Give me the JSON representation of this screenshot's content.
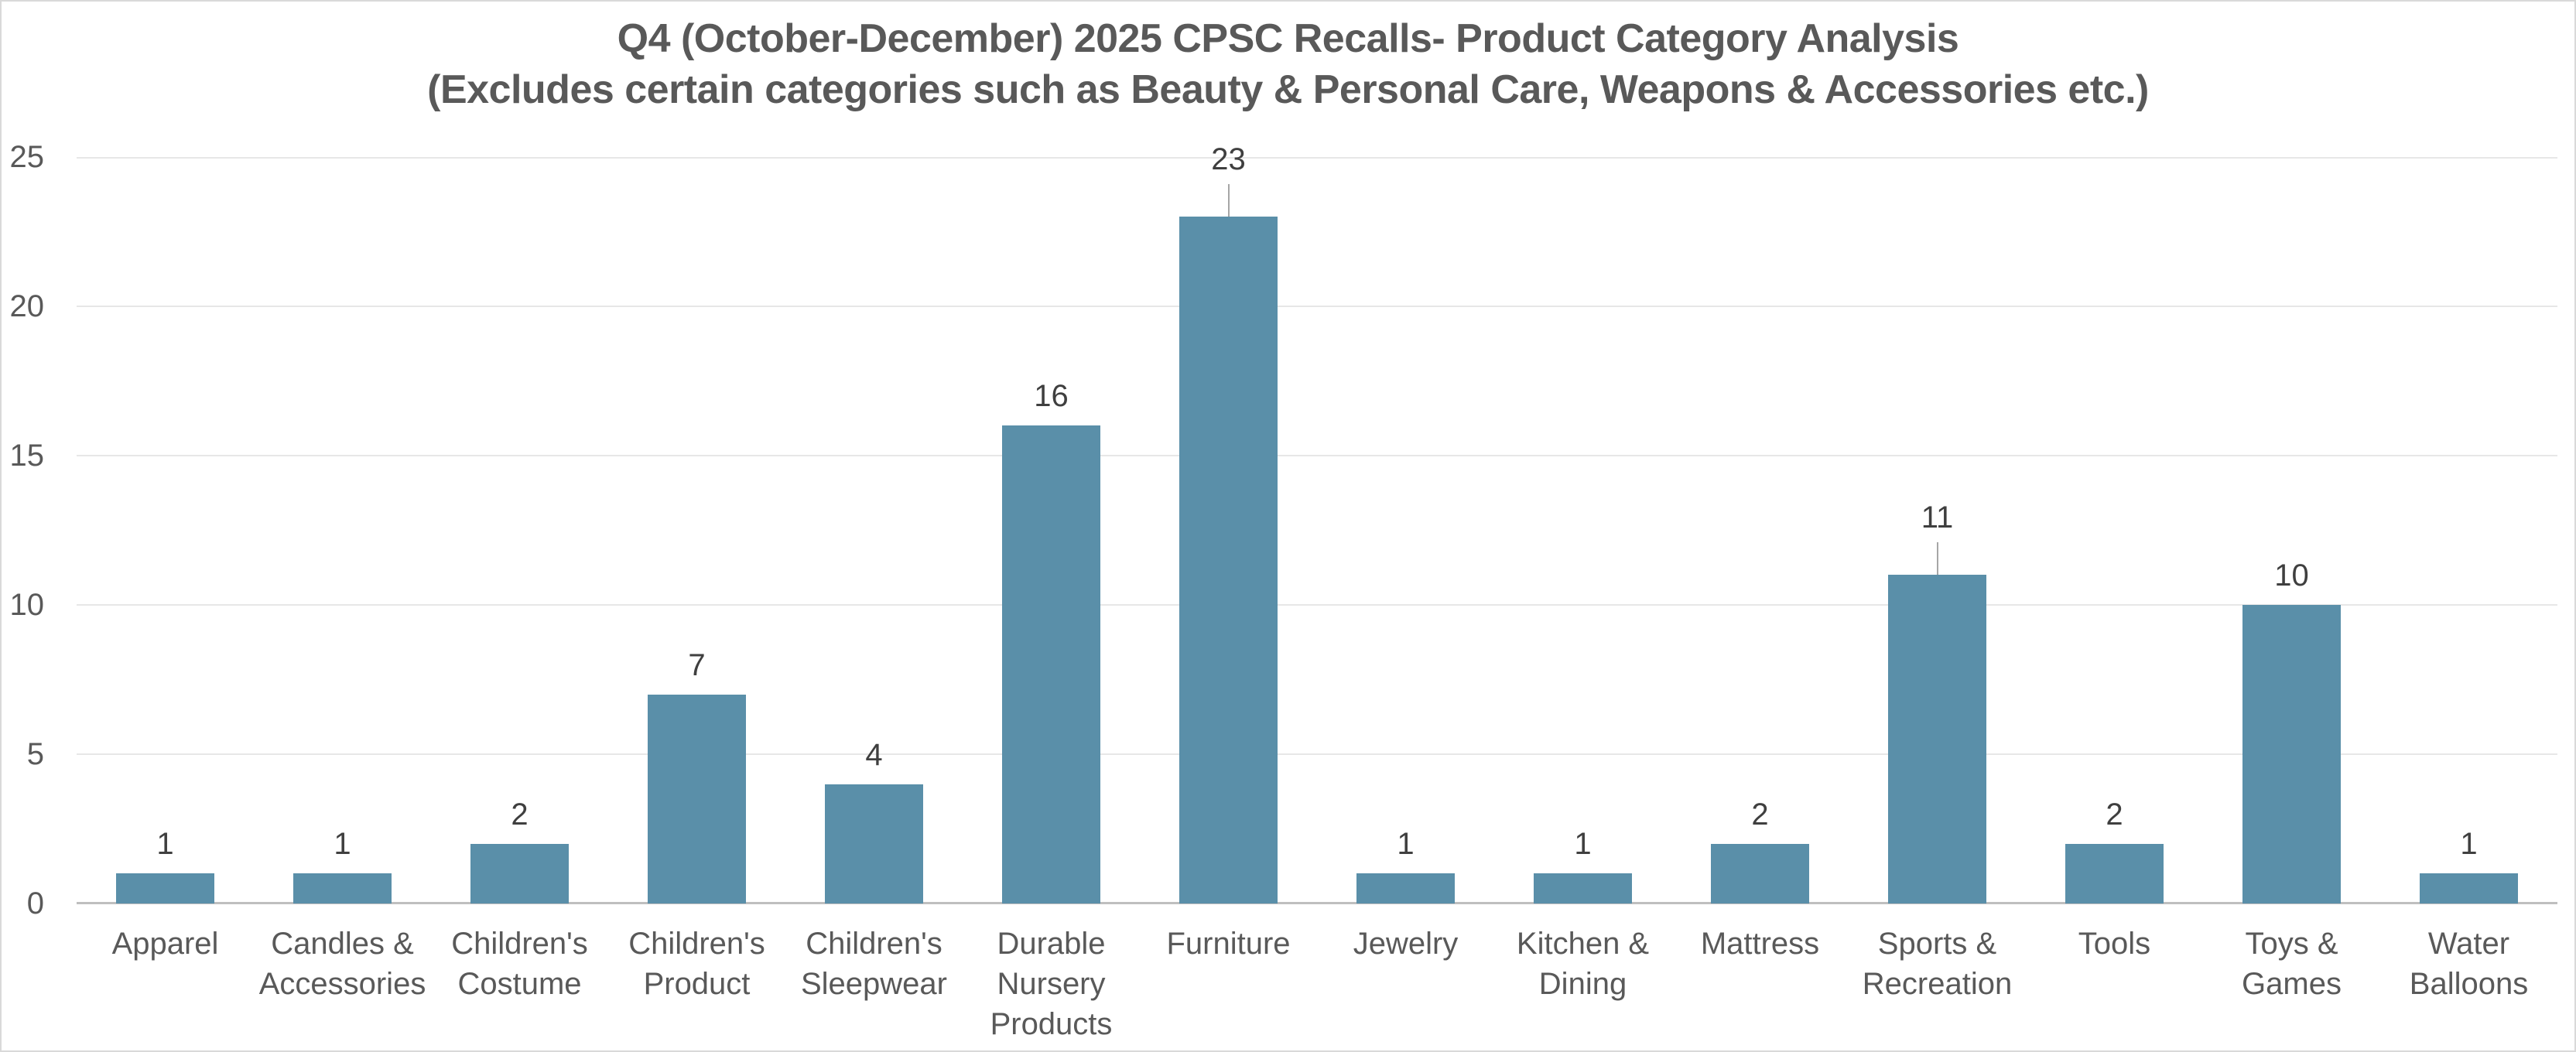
{
  "chart_data": {
    "type": "bar",
    "title": "Q4 (October-December) 2025 CPSC Recalls- Product Category Analysis",
    "subtitle": "(Excludes certain categories such as Beauty & Personal Care, Weapons & Accessories etc.)",
    "categories": [
      "Apparel",
      "Candles & Accessories",
      "Children's Costume",
      "Children's Product",
      "Children's Sleepwear",
      "Durable Nursery Products",
      "Furniture",
      "Jewelry",
      "Kitchen & Dining",
      "Mattress",
      "Sports & Recreation",
      "Tools",
      "Toys & Games",
      "Water Balloons"
    ],
    "values": [
      1,
      1,
      2,
      7,
      4,
      16,
      23,
      1,
      1,
      2,
      11,
      2,
      10,
      1
    ],
    "y_ticks": [
      0,
      5,
      10,
      15,
      20,
      25
    ],
    "ylim": [
      0,
      25
    ],
    "xlabel": "",
    "ylabel": "",
    "grid": "horizontal",
    "legend": "none",
    "data_labels_shown": true,
    "leader_line_categories": [
      "Furniture",
      "Sports & Recreation"
    ],
    "colors": {
      "bar": "#5A8FA9",
      "gridline": "#E7E7E7",
      "axis_line": "#BFBFBF",
      "title_text": "#595959",
      "axis_text": "#595959",
      "data_label_text": "#3F3F3F",
      "leader_line": "#A6A6A6",
      "background": "#FFFFFF",
      "border": "#D9D9D9"
    }
  }
}
